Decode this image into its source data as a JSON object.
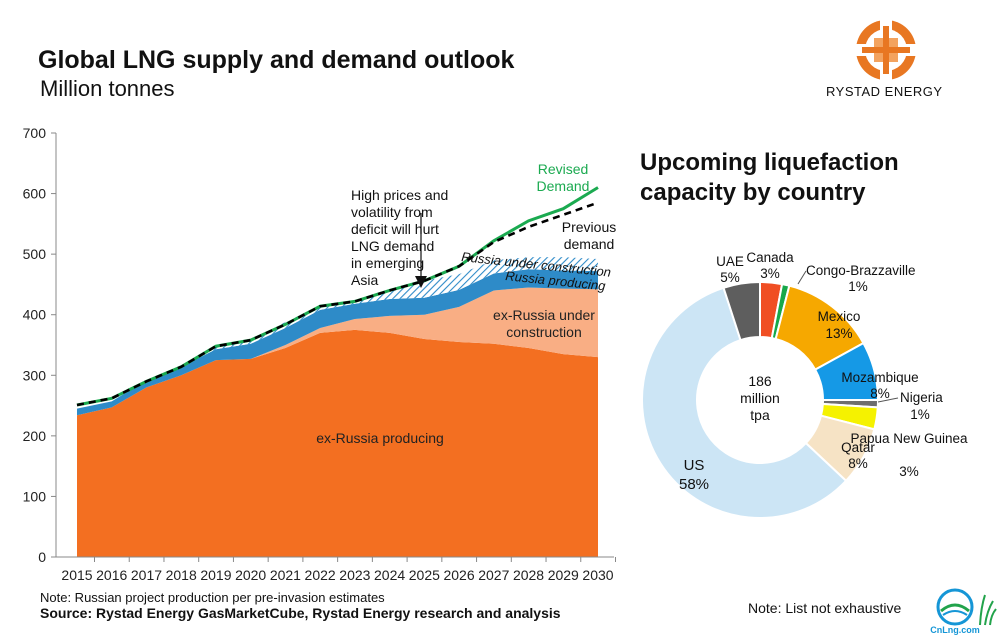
{
  "title": "Global LNG supply and demand outlook",
  "subtitle": "Million tonnes",
  "logo_text": "RYSTAD ENERGY",
  "note": "Note: Russian project production per pre-invasion estimates",
  "source": "Source: Rystad Energy GasMarketCube, Rystad Energy research and analysis",
  "note_right": "Note: List not exhaustive",
  "watermark": "CnLng.com",
  "colors": {
    "ex_russia_producing": "#F36F21",
    "ex_russia_under_construction": "#F9AE84",
    "russia_producing": "#2E8BC8",
    "russia_under_construction": "#9FCDEA",
    "revised_demand": "#1BAA50",
    "previous_demand": "#000000"
  },
  "chart_data": [
    {
      "type": "area",
      "title": "",
      "xlabel": "",
      "ylabel": "",
      "x": [
        "2015",
        "2016",
        "2017",
        "2018",
        "2019",
        "2020",
        "2021",
        "2022",
        "2023",
        "2024",
        "2025",
        "2026",
        "2027",
        "2028",
        "2029",
        "2030"
      ],
      "ylim": [
        0,
        700
      ],
      "yticks": [
        0,
        100,
        200,
        300,
        400,
        500,
        600,
        700
      ],
      "grid": false,
      "stacked": true,
      "series": [
        {
          "name": "ex-Russia producing",
          "values": [
            234,
            247,
            280,
            300,
            325,
            327,
            345,
            370,
            375,
            370,
            360,
            355,
            352,
            345,
            335,
            330
          ]
        },
        {
          "name": "ex-Russia under construction",
          "values": [
            0,
            0,
            0,
            0,
            0,
            0,
            5,
            8,
            18,
            28,
            40,
            58,
            88,
            100,
            108,
            112
          ]
        },
        {
          "name": "Russia producing",
          "values": [
            11,
            10,
            12,
            14,
            18,
            25,
            28,
            30,
            25,
            28,
            28,
            28,
            28,
            30,
            30,
            30
          ]
        },
        {
          "name": "Russia under construction",
          "values": [
            0,
            0,
            0,
            0,
            5,
            6,
            10,
            6,
            6,
            14,
            28,
            26,
            22,
            20,
            22,
            20
          ]
        }
      ],
      "lines": [
        {
          "name": "Revised Demand",
          "values": [
            251,
            262,
            290,
            314,
            348,
            358,
            384,
            414,
            422,
            440,
            456,
            480,
            522,
            555,
            575,
            610
          ]
        },
        {
          "name": "Previous demand",
          "values": [
            251,
            262,
            290,
            314,
            348,
            358,
            384,
            414,
            422,
            440,
            456,
            480,
            520,
            545,
            565,
            585
          ]
        }
      ],
      "annotations": [
        {
          "text": "Revised Demand",
          "lines": [
            "Revised",
            "Demand"
          ]
        },
        {
          "text": "Previous demand",
          "lines": [
            "Previous",
            "demand"
          ]
        },
        {
          "text": "High prices and volatility from deficit will hurt LNG demand in emerging Asia",
          "lines": [
            "High prices and",
            "volatility from",
            "deficit will hurt",
            "LNG demand",
            "in emerging",
            "Asia"
          ]
        },
        {
          "text": "Russia under construction",
          "lines": [
            "Russia under construction"
          ]
        },
        {
          "text": "Russia producing",
          "lines": [
            "Russia producing"
          ]
        },
        {
          "text": "ex-Russia under construction",
          "lines": [
            "ex-Russia under",
            "construction"
          ]
        },
        {
          "text": "ex-Russia producing",
          "lines": [
            "ex-Russia producing"
          ]
        }
      ]
    },
    {
      "type": "pie",
      "title": "Upcoming liquefaction capacity by country",
      "title_lines": [
        "Upcoming liquefaction",
        "capacity by country"
      ],
      "center_label": [
        "186",
        "million",
        "tpa"
      ],
      "slices": [
        {
          "name": "Canada",
          "value": 3,
          "label": "3%",
          "color": "#F04E23"
        },
        {
          "name": "Congo-Brazzaville",
          "value": 1,
          "label": "1%",
          "color": "#17A84A"
        },
        {
          "name": "Mexico",
          "value": 13,
          "label": "13%",
          "color": "#F6A800"
        },
        {
          "name": "Mozambique",
          "value": 8,
          "label": "8%",
          "color": "#1599E6"
        },
        {
          "name": "Nigeria",
          "value": 1,
          "label": "1%",
          "color": "#6E6E6E"
        },
        {
          "name": "Papua New Guinea",
          "value": 3,
          "label": "3%",
          "color": "#F5F200"
        },
        {
          "name": "Qatar",
          "value": 8,
          "label": "8%",
          "color": "#F6E3C5"
        },
        {
          "name": "US",
          "value": 58,
          "label": "58%",
          "color": "#CCE5F5"
        },
        {
          "name": "UAE",
          "value": 5,
          "label": "5%",
          "color": "#5E5E5E"
        }
      ]
    }
  ]
}
